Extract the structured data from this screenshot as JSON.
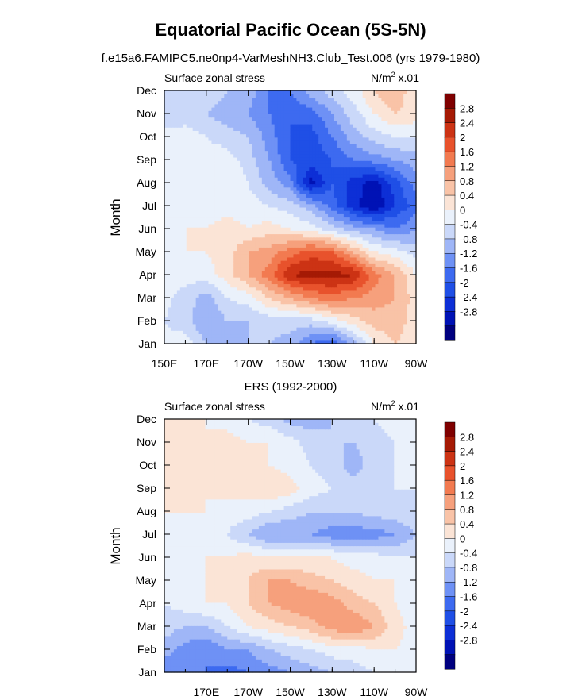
{
  "figure": {
    "title": "Equatorial Pacific Ocean (5S-5N)",
    "subtitle": "f.e15a6.FAMIPC5.ne0np4-VarMeshNH3.Club_Test.006 (yrs 1979-1980)"
  },
  "chart_data": [
    {
      "type": "heatmap",
      "title": "",
      "left_label": "Surface zonal stress",
      "right_label_base": "N/m",
      "right_label_sup": "2",
      "right_label_suffix": " x.01",
      "ylabel": "Month",
      "xlabel": "",
      "x_ticks": [
        "150E",
        "170E",
        "170W",
        "150W",
        "130W",
        "110W",
        "90W"
      ],
      "y_ticks": [
        "Jan",
        "Feb",
        "Mar",
        "Apr",
        "May",
        "Jun",
        "Jul",
        "Aug",
        "Sep",
        "Oct",
        "Nov",
        "Dec"
      ],
      "xlim_deg_east": [
        150,
        270
      ],
      "x_lon": [
        150,
        160,
        170,
        180,
        190,
        200,
        210,
        220,
        230,
        240,
        250,
        260,
        270
      ],
      "grid": false,
      "z": [
        [
          0.1,
          0.2,
          -0.4,
          -0.6,
          -0.4,
          -0.4,
          -0.6,
          -1.2,
          -1.6,
          -0.6,
          0.4,
          0.8,
          0.6
        ],
        [
          0.0,
          -0.2,
          -0.8,
          -0.4,
          -0.4,
          -0.2,
          -0.2,
          -0.2,
          0.2,
          0.6,
          1.0,
          1.0,
          0.6
        ],
        [
          0.1,
          -0.2,
          -0.6,
          0.0,
          0.2,
          0.8,
          1.2,
          1.6,
          1.8,
          1.6,
          1.4,
          1.2,
          0.6
        ],
        [
          0.2,
          0.2,
          0.2,
          0.6,
          1.2,
          1.8,
          2.8,
          3.0,
          3.0,
          2.8,
          1.8,
          1.2,
          0.4
        ],
        [
          0.3,
          0.4,
          0.4,
          0.6,
          1.2,
          1.4,
          1.8,
          2.2,
          2.0,
          1.2,
          0.4,
          0.2,
          -0.2
        ],
        [
          0.4,
          0.4,
          0.4,
          0.6,
          0.4,
          0.6,
          0.4,
          0.2,
          -0.2,
          -0.6,
          -0.8,
          -1.2,
          -0.8
        ],
        [
          0.4,
          0.3,
          0.2,
          0.2,
          0.2,
          0.0,
          -0.2,
          -0.6,
          -1.4,
          -2.2,
          -2.8,
          -2.0,
          -1.4
        ],
        [
          0.2,
          0.4,
          0.4,
          0.4,
          0.0,
          -0.6,
          -1.0,
          -2.6,
          -1.6,
          -2.2,
          -2.6,
          -1.8,
          -1.0
        ],
        [
          0.2,
          0.4,
          0.2,
          0.2,
          -0.2,
          -0.8,
          -1.6,
          -1.8,
          -1.6,
          -1.2,
          -1.0,
          -0.8,
          -0.6
        ],
        [
          0.1,
          0.2,
          0.0,
          -0.2,
          -0.4,
          -1.0,
          -1.6,
          -1.8,
          -1.2,
          -0.6,
          -0.2,
          0.0,
          0.0
        ],
        [
          -0.2,
          -0.2,
          -0.4,
          -0.6,
          -0.8,
          -1.2,
          -1.6,
          -1.4,
          -0.8,
          -0.2,
          0.4,
          0.8,
          0.6
        ],
        [
          -0.4,
          -0.2,
          -0.2,
          -0.4,
          -0.6,
          -1.2,
          -1.2,
          -0.6,
          -0.2,
          0.2,
          0.8,
          1.2,
          0.4
        ]
      ],
      "colorbar_labels": [
        "2.8",
        "2.4",
        "2",
        "1.6",
        "1.2",
        "0.8",
        "0.4",
        "0",
        "-0.4",
        "-0.8",
        "-1.2",
        "-1.6",
        "-2",
        "-2.4",
        "-2.8"
      ]
    },
    {
      "type": "heatmap",
      "title": "ERS (1992-2000)",
      "left_label": "Surface zonal stress",
      "right_label_base": "N/m",
      "right_label_sup": "2",
      "right_label_suffix": " x.01",
      "ylabel": "Month",
      "xlabel": "",
      "x_ticks": [
        "170E",
        "170W",
        "150W",
        "130W",
        "110W",
        "90W"
      ],
      "y_ticks": [
        "Jan",
        "Feb",
        "Mar",
        "Apr",
        "May",
        "Jun",
        "Jul",
        "Aug",
        "Sep",
        "Oct",
        "Nov",
        "Dec"
      ],
      "xlim_deg_east": [
        150,
        270
      ],
      "x_lon": [
        150,
        160,
        170,
        180,
        190,
        200,
        210,
        220,
        230,
        240,
        250,
        260,
        270
      ],
      "grid": false,
      "z": [
        [
          -1.2,
          -1.0,
          -1.2,
          -1.4,
          -1.2,
          -1.0,
          -0.8,
          -0.6,
          -0.4,
          -0.2,
          0.0,
          0.2,
          0.2
        ],
        [
          -0.6,
          -1.0,
          -1.2,
          -0.8,
          -0.8,
          -0.4,
          -0.2,
          0.0,
          0.2,
          0.2,
          0.4,
          0.4,
          0.2
        ],
        [
          -0.2,
          -0.4,
          -0.4,
          0.0,
          0.4,
          0.6,
          0.8,
          1.0,
          1.4,
          1.6,
          1.2,
          0.6,
          0.2
        ],
        [
          0.0,
          0.2,
          0.4,
          0.4,
          0.8,
          1.2,
          1.4,
          1.6,
          1.4,
          1.0,
          0.8,
          0.4,
          0.2
        ],
        [
          0.2,
          0.2,
          0.4,
          0.6,
          0.8,
          1.2,
          1.2,
          1.0,
          0.8,
          0.6,
          0.4,
          0.4,
          0.2
        ],
        [
          0.2,
          0.2,
          0.4,
          0.4,
          0.6,
          0.4,
          0.4,
          0.4,
          0.4,
          0.2,
          0.2,
          0.0,
          0.0
        ],
        [
          0.2,
          0.2,
          0.2,
          0.0,
          -0.4,
          -0.8,
          -0.8,
          -0.8,
          -1.0,
          -1.0,
          -1.0,
          -0.8,
          -0.4
        ],
        [
          0.4,
          0.4,
          0.4,
          0.2,
          0.2,
          0.0,
          -0.2,
          -0.4,
          -0.4,
          -0.4,
          -0.2,
          -0.2,
          0.0
        ],
        [
          0.4,
          0.6,
          0.4,
          0.6,
          0.6,
          0.8,
          0.6,
          0.2,
          0.0,
          -0.2,
          -0.2,
          0.0,
          0.0
        ],
        [
          0.6,
          0.4,
          0.4,
          0.4,
          0.4,
          0.4,
          0.2,
          0.0,
          -0.2,
          -0.6,
          -0.2,
          0.0,
          0.0
        ],
        [
          0.6,
          0.6,
          0.4,
          0.6,
          0.4,
          0.4,
          0.2,
          -0.2,
          -0.4,
          -0.4,
          -0.2,
          0.0,
          0.2
        ],
        [
          0.4,
          0.4,
          0.4,
          0.2,
          0.0,
          -0.2,
          -0.6,
          -0.6,
          -0.4,
          -0.2,
          0.0,
          0.2,
          0.2
        ]
      ],
      "colorbar_labels": [
        "2.8",
        "2.4",
        "2",
        "1.6",
        "1.2",
        "0.8",
        "0.4",
        "0",
        "-0.4",
        "-0.8",
        "-1.2",
        "-1.6",
        "-2",
        "-2.4",
        "-2.8"
      ]
    }
  ],
  "colormap": {
    "levels": [
      -3.2,
      -2.8,
      -2.4,
      -2.0,
      -1.6,
      -1.2,
      -0.8,
      -0.4,
      0.0,
      0.4,
      0.8,
      1.2,
      1.6,
      2.0,
      2.4,
      2.8,
      3.2
    ],
    "colors": [
      "#00007f",
      "#0012b5",
      "#0d2fd6",
      "#1f4fe6",
      "#3d6af0",
      "#6e91f5",
      "#9fb6f7",
      "#cad8f9",
      "#eaf1fb",
      "#fbe4d6",
      "#f9c3a7",
      "#f6a07c",
      "#f27a50",
      "#e8522c",
      "#cc3314",
      "#a51a05",
      "#7f0000"
    ]
  }
}
